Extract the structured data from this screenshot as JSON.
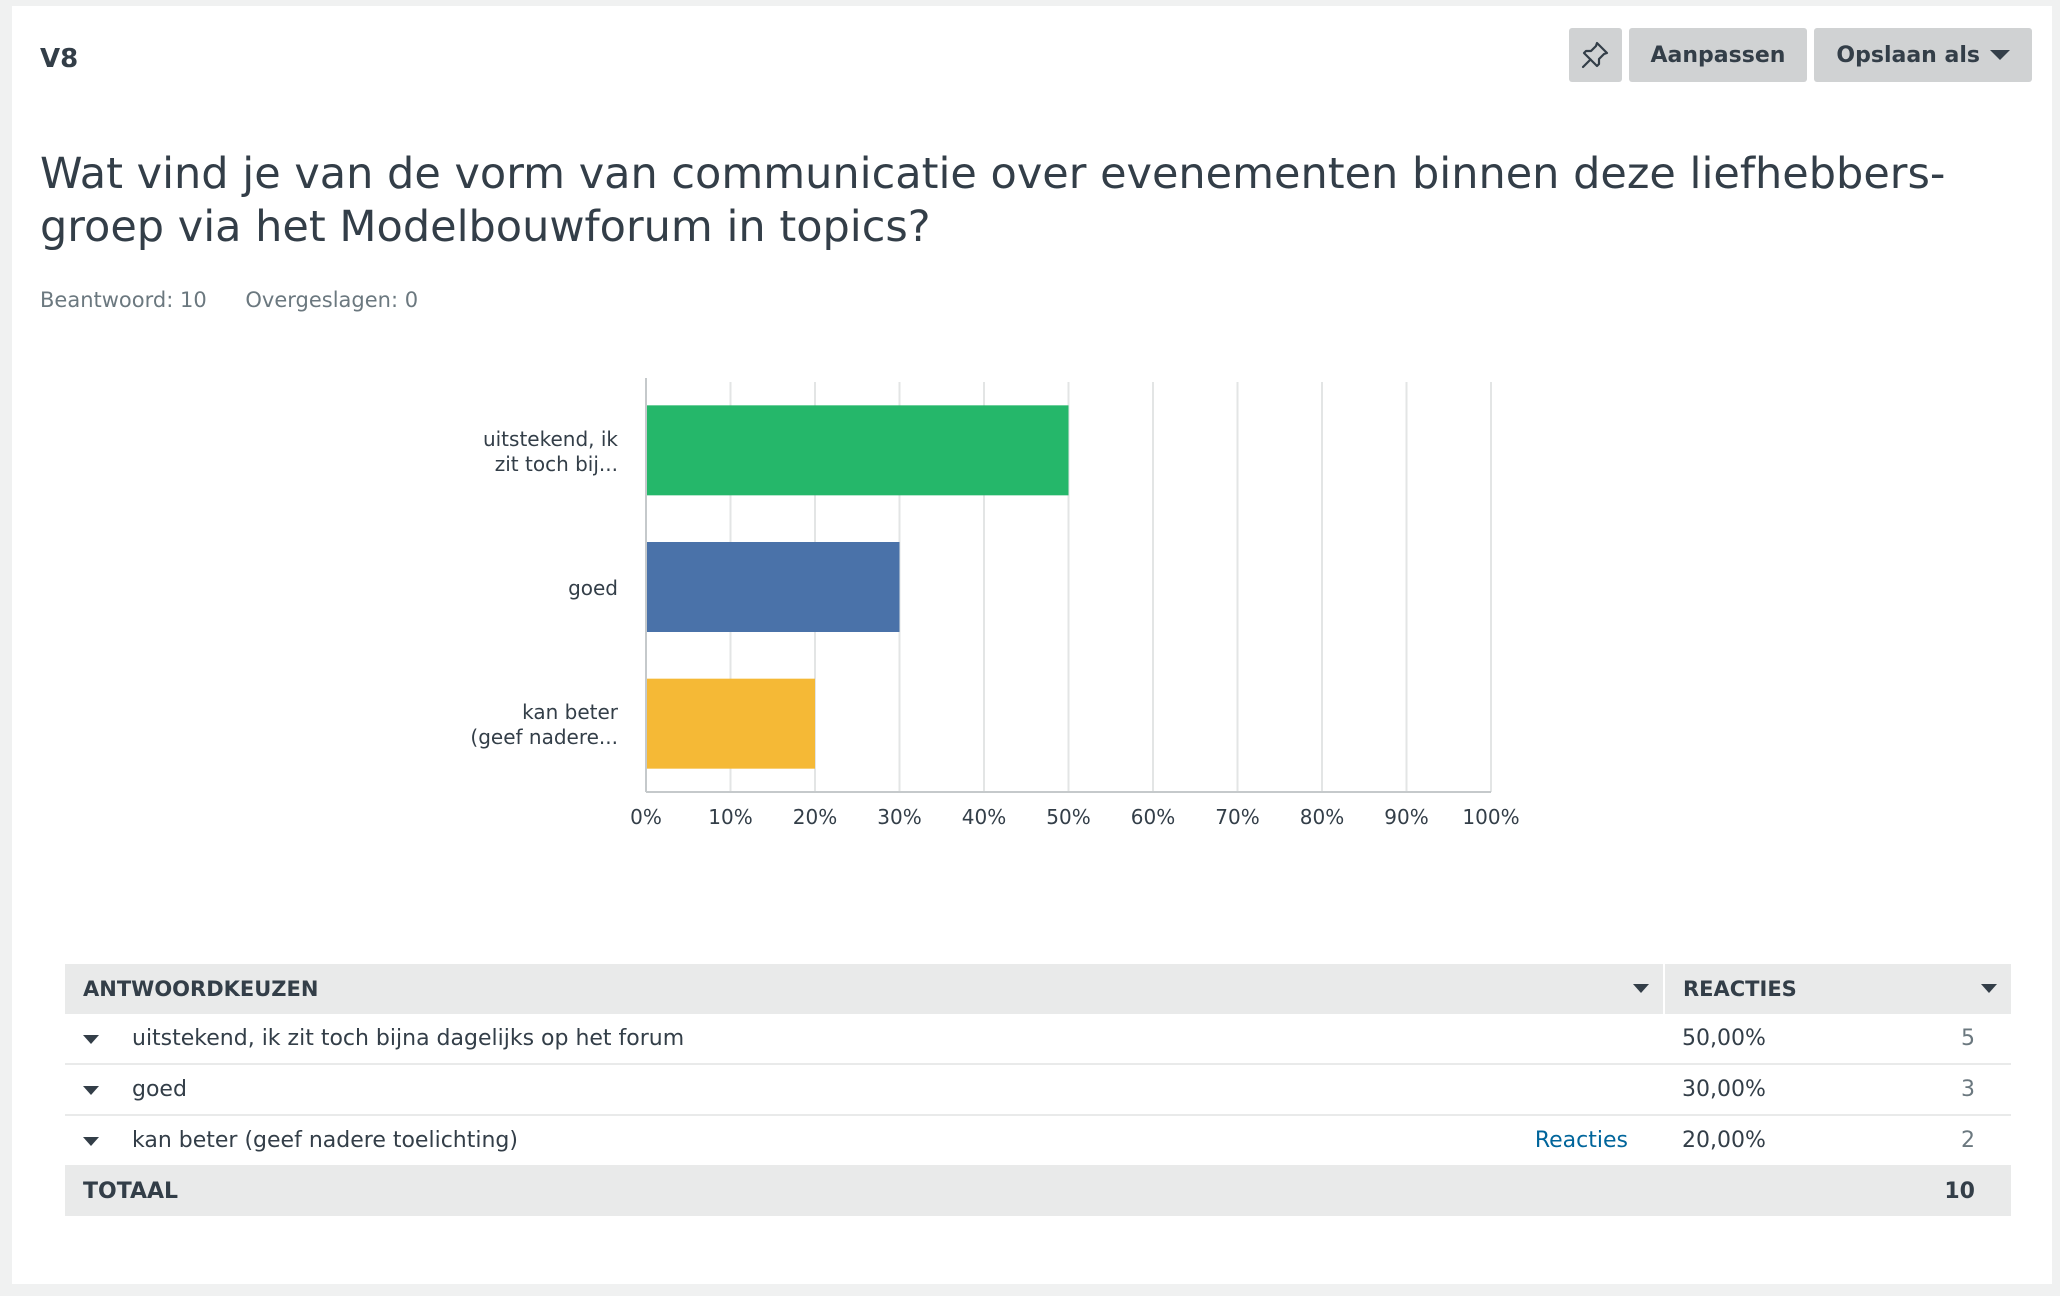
{
  "header": {
    "question_id": "V8",
    "pin_icon": "pin-icon",
    "customize_label": "Aanpassen",
    "save_as_label": "Opslaan als"
  },
  "question": {
    "text": "Wat vind je van de vorm van communicatie over evenementen binnen deze liefhebbers-groep via het Modelbouwforum in topics?",
    "answered": "Beantwoord: 10",
    "skipped": "Overgeslagen: 0"
  },
  "chart_data": {
    "type": "bar",
    "orientation": "horizontal",
    "categories": [
      [
        "uitstekend, ik",
        "zit toch bij..."
      ],
      [
        "goed"
      ],
      [
        "kan beter",
        "(geef nadere..."
      ]
    ],
    "values": [
      50,
      30,
      20
    ],
    "colors": [
      "#25b76a",
      "#4a72a9",
      "#f5b936"
    ],
    "xlim": [
      0,
      100
    ],
    "xticks": [
      "0%",
      "10%",
      "20%",
      "30%",
      "40%",
      "50%",
      "60%",
      "70%",
      "80%",
      "90%",
      "100%"
    ],
    "grid": true
  },
  "table": {
    "headers": {
      "choices": "ANTWOORDKEUZEN",
      "responses": "REACTIES"
    },
    "rows": [
      {
        "label": "uitstekend, ik zit toch bijna dagelijks op het forum",
        "link": "",
        "percent": "50,00%",
        "count": "5"
      },
      {
        "label": "goed",
        "link": "",
        "percent": "30,00%",
        "count": "3"
      },
      {
        "label": "kan beter (geef nadere toelichting)",
        "link": "Reacties",
        "percent": "20,00%",
        "count": "2"
      }
    ],
    "total": {
      "label": "TOTAAL",
      "count": "10"
    }
  }
}
